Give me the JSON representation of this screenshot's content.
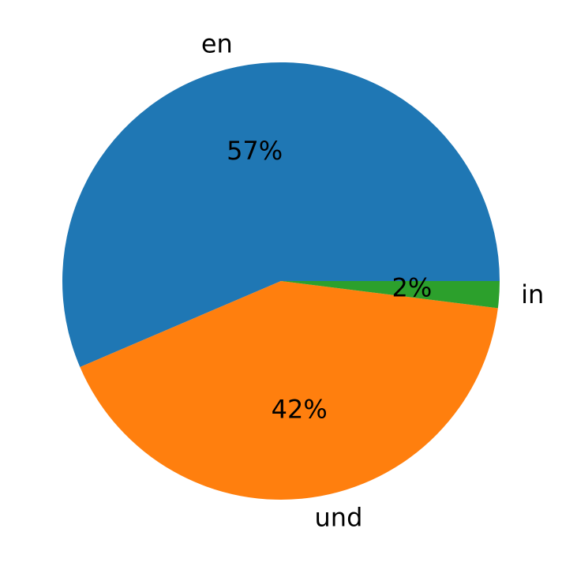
{
  "chart_data": {
    "type": "pie",
    "categories": [
      "en",
      "und",
      "in"
    ],
    "values": [
      57,
      42,
      2
    ],
    "value_labels": [
      "57%",
      "42%",
      "2%"
    ],
    "colors": [
      "#1f77b4",
      "#ff7f0e",
      "#2ca02c"
    ]
  }
}
